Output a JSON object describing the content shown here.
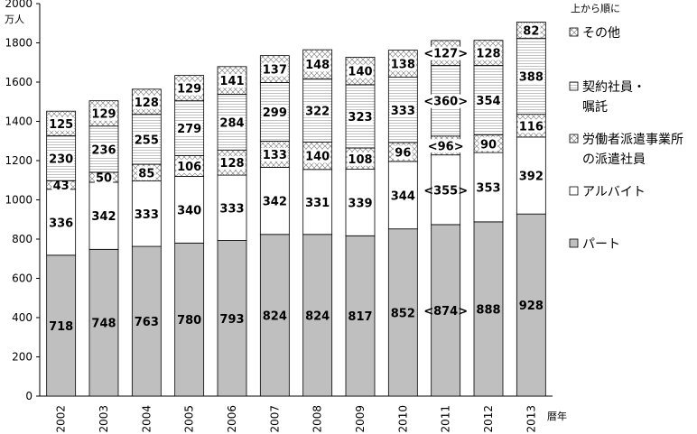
{
  "chart_data": {
    "type": "bar",
    "stacked": true,
    "title": "",
    "ylabel": "万人",
    "xlabel": "暦年",
    "ylim": [
      0,
      2000
    ],
    "yticks": [
      0,
      200,
      400,
      600,
      800,
      1000,
      1200,
      1400,
      1600,
      1800,
      2000
    ],
    "grid": false,
    "legend_placement": "right",
    "legend_note": "上から順に",
    "categories": [
      "2002",
      "2003",
      "2004",
      "2005",
      "2006",
      "2007",
      "2008",
      "2009",
      "2010",
      "2011",
      "2012",
      "2013"
    ],
    "series": [
      {
        "name": "パート",
        "fill": "gray",
        "values": [
          718,
          748,
          763,
          780,
          793,
          824,
          824,
          817,
          852,
          874,
          888,
          928
        ],
        "labels": [
          "718",
          "748",
          "763",
          "780",
          "793",
          "824",
          "824",
          "817",
          "852",
          "<874>",
          "888",
          "928"
        ]
      },
      {
        "name": "アルバイト",
        "fill": "white",
        "values": [
          336,
          342,
          333,
          340,
          333,
          342,
          331,
          339,
          344,
          355,
          353,
          392
        ],
        "labels": [
          "336",
          "342",
          "333",
          "340",
          "333",
          "342",
          "331",
          "339",
          "344",
          "<355>",
          "353",
          "392"
        ]
      },
      {
        "name": "労働者派遣事業所の派遣社員",
        "fill": "crosshatch",
        "values": [
          43,
          50,
          85,
          106,
          128,
          133,
          140,
          108,
          96,
          96,
          90,
          116
        ],
        "labels": [
          "43",
          "50",
          "85",
          "106",
          "128",
          "133",
          "140",
          "108",
          "96",
          "<96>",
          "90",
          "116"
        ]
      },
      {
        "name": "契約社員・嘱託",
        "fill": "lines",
        "values": [
          230,
          236,
          255,
          279,
          284,
          299,
          322,
          323,
          333,
          360,
          354,
          388
        ],
        "labels": [
          "230",
          "236",
          "255",
          "279",
          "284",
          "299",
          "322",
          "323",
          "333",
          "<360>",
          "354",
          "388"
        ]
      },
      {
        "name": "その他",
        "fill": "crosshatch",
        "values": [
          125,
          129,
          128,
          129,
          141,
          137,
          148,
          140,
          138,
          127,
          128,
          82
        ],
        "labels": [
          "125",
          "129",
          "128",
          "129",
          "141",
          "137",
          "148",
          "140",
          "138",
          "<127>",
          "128",
          "82"
        ]
      }
    ],
    "legend_order": [
      4,
      3,
      2,
      1,
      0
    ],
    "legend_lines": [
      [
        "その他"
      ],
      [
        "契約社員・",
        "嘱託"
      ],
      [
        "労働者派遣事業所",
        "の派遣社員"
      ],
      [
        "アルバイト"
      ],
      [
        "パート"
      ]
    ]
  }
}
